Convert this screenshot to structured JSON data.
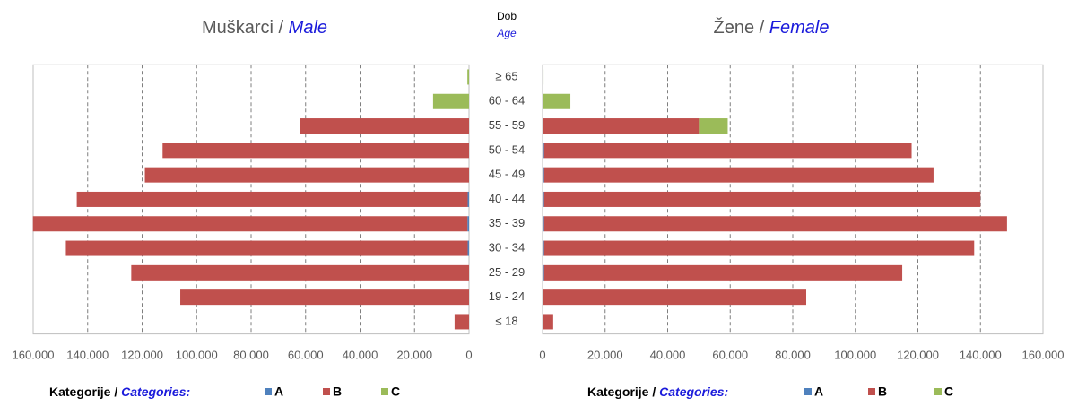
{
  "center_label": {
    "local": "Dob",
    "english": "Age"
  },
  "chart_data": [
    {
      "type": "bar",
      "orientation": "horizontal",
      "stacked": true,
      "x_reversed": true,
      "title": {
        "local": "Muškarci /",
        "english": "Male"
      },
      "legend_title": {
        "local": "Kategorije /",
        "english": "Categories:"
      },
      "categories": [
        "≥ 65",
        "60 - 64",
        "55 - 59",
        "50 - 54",
        "45 - 49",
        "40 - 44",
        "35 - 39",
        "30 - 34",
        "25 - 29",
        "19 - 24",
        "≤ 18"
      ],
      "series": [
        {
          "name": "A",
          "color": "#4f81bd",
          "values": [
            0,
            0,
            0,
            0,
            0,
            500,
            600,
            500,
            0,
            0,
            0
          ]
        },
        {
          "name": "B",
          "color": "#c0504d",
          "values": [
            0,
            0,
            62000,
            112500,
            119000,
            143500,
            159500,
            147500,
            124000,
            106000,
            5300
          ]
        },
        {
          "name": "C",
          "color": "#9bbb59",
          "values": [
            600,
            13200,
            0,
            0,
            0,
            0,
            0,
            0,
            0,
            0,
            0
          ]
        }
      ],
      "xlim": [
        0,
        160000
      ],
      "xticks": [
        0,
        {
          "value": 20000,
          "label": "20.000"
        },
        {
          "value": 40000,
          "label": "40.000"
        },
        {
          "value": 60000,
          "label": "60.000"
        },
        {
          "value": 80000,
          "label": "80.000"
        },
        {
          "value": 100000,
          "label": "100.000"
        },
        {
          "value": 120000,
          "label": "120.000"
        },
        {
          "value": 140000,
          "label": "140.000"
        },
        {
          "value": 160000,
          "label": "160.000"
        }
      ],
      "grid": true
    },
    {
      "type": "bar",
      "orientation": "horizontal",
      "stacked": true,
      "x_reversed": false,
      "title": {
        "local": "Žene /",
        "english": "Female"
      },
      "legend_title": {
        "local": "Kategorije /",
        "english": "Categories:"
      },
      "series": [
        {
          "name": "A",
          "color": "#4f81bd",
          "values": [
            0,
            0,
            0,
            500,
            500,
            500,
            500,
            500,
            500,
            0,
            0
          ]
        },
        {
          "name": "B",
          "color": "#c0504d",
          "values": [
            0,
            0,
            50000,
            117500,
            124500,
            139500,
            148000,
            137500,
            114500,
            84300,
            3400
          ]
        },
        {
          "name": "C",
          "color": "#9bbb59",
          "values": [
            300,
            8900,
            9200,
            0,
            0,
            0,
            0,
            0,
            0,
            0,
            0
          ]
        }
      ],
      "xlim": [
        0,
        160000
      ],
      "xticks": [
        0,
        {
          "value": 20000,
          "label": "20.000"
        },
        {
          "value": 40000,
          "label": "40.000"
        },
        {
          "value": 60000,
          "label": "60.000"
        },
        {
          "value": 80000,
          "label": "80.000"
        },
        {
          "value": 100000,
          "label": "100.000"
        },
        {
          "value": 120000,
          "label": "120.000"
        },
        {
          "value": 140000,
          "label": "140.000"
        },
        {
          "value": 160000,
          "label": "160.000"
        }
      ],
      "grid": true
    }
  ]
}
